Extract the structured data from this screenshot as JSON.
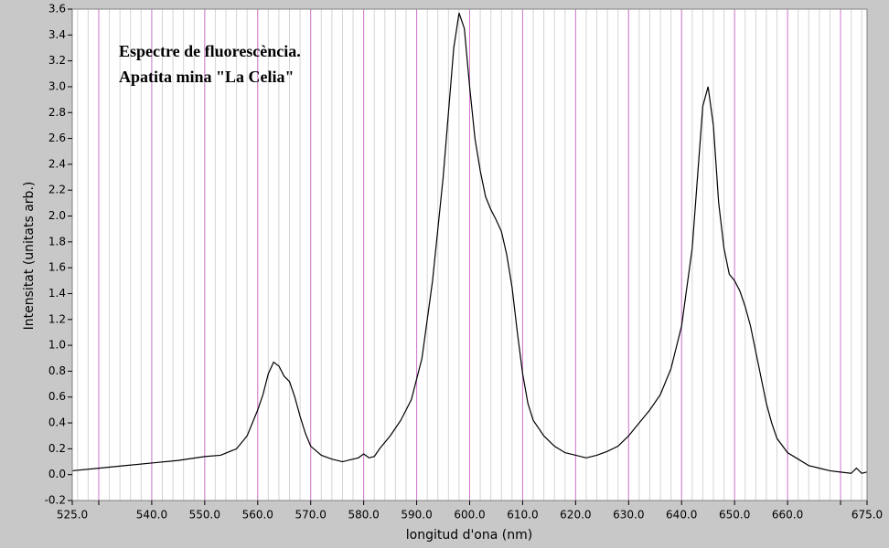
{
  "chart_data": {
    "type": "line",
    "annotation": [
      "Espectre de fluorescència.",
      "Apatita mina \"La Celia\""
    ],
    "xlabel": "longitud d'ona (nm)",
    "ylabel": "Intensitat (unitats arb.)",
    "xlim": [
      525,
      675
    ],
    "ylim": [
      -0.2,
      3.6
    ],
    "xticks": [
      {
        "value": 525,
        "label": "525.0"
      },
      {
        "value": 530,
        "label": null
      },
      {
        "value": 540,
        "label": "540.0"
      },
      {
        "value": 550,
        "label": "550.0"
      },
      {
        "value": 560,
        "label": "560.0"
      },
      {
        "value": 570,
        "label": "570.0"
      },
      {
        "value": 580,
        "label": "580.0"
      },
      {
        "value": 590,
        "label": "590.0"
      },
      {
        "value": 600,
        "label": "600.0"
      },
      {
        "value": 610,
        "label": "610.0"
      },
      {
        "value": 620,
        "label": "620.0"
      },
      {
        "value": 630,
        "label": "630.0"
      },
      {
        "value": 640,
        "label": "640.0"
      },
      {
        "value": 650,
        "label": "650.0"
      },
      {
        "value": 660,
        "label": "660.0"
      },
      {
        "value": 670,
        "label": null
      },
      {
        "value": 675,
        "label": "675.0"
      }
    ],
    "yticks": [
      -0.2,
      {
        "value": 0,
        "label": "0.0"
      },
      0.2,
      0.4,
      0.6,
      0.8,
      {
        "value": 1,
        "label": "1.0"
      },
      1.2,
      1.4,
      1.6,
      1.8,
      {
        "value": 2,
        "label": "2.0"
      },
      2.2,
      2.4,
      2.6,
      2.8,
      {
        "value": 3,
        "label": "3.0"
      },
      3.2,
      3.4,
      3.6
    ],
    "x_minor_step": 2,
    "grid_color": "#d07ad0",
    "minor_grid_color": "#d4d4d4",
    "series": [
      {
        "color": "#000000",
        "x": [
          525,
          530,
          535,
          540,
          545,
          550,
          553,
          556,
          558,
          560,
          561,
          562,
          563,
          564,
          565,
          566,
          567,
          568,
          569,
          570,
          572,
          574,
          576,
          578,
          579,
          580,
          581,
          582,
          583,
          585,
          587,
          589,
          591,
          593,
          595,
          596,
          597,
          598,
          599,
          600,
          601,
          602,
          603,
          604,
          605,
          606,
          607,
          608,
          609,
          610,
          611,
          612,
          614,
          616,
          618,
          620,
          622,
          624,
          626,
          628,
          630,
          632,
          634,
          636,
          638,
          640,
          642,
          643,
          644,
          645,
          646,
          647,
          648,
          649,
          650,
          651,
          652,
          653,
          654,
          655,
          656,
          657,
          658,
          660,
          662,
          664,
          666,
          668,
          670,
          672,
          673,
          674,
          675
        ],
        "values": [
          0.03,
          0.05,
          0.07,
          0.09,
          0.11,
          0.14,
          0.15,
          0.2,
          0.3,
          0.5,
          0.62,
          0.78,
          0.87,
          0.84,
          0.76,
          0.72,
          0.6,
          0.45,
          0.32,
          0.22,
          0.15,
          0.12,
          0.1,
          0.12,
          0.13,
          0.16,
          0.13,
          0.14,
          0.2,
          0.3,
          0.42,
          0.58,
          0.9,
          1.5,
          2.3,
          2.8,
          3.3,
          3.57,
          3.45,
          3.0,
          2.6,
          2.35,
          2.15,
          2.05,
          1.97,
          1.88,
          1.7,
          1.45,
          1.1,
          0.78,
          0.55,
          0.42,
          0.3,
          0.22,
          0.17,
          0.15,
          0.13,
          0.15,
          0.18,
          0.22,
          0.3,
          0.4,
          0.5,
          0.62,
          0.82,
          1.15,
          1.75,
          2.3,
          2.85,
          3.0,
          2.7,
          2.1,
          1.75,
          1.55,
          1.5,
          1.42,
          1.3,
          1.15,
          0.95,
          0.75,
          0.55,
          0.4,
          0.28,
          0.17,
          0.12,
          0.07,
          0.05,
          0.03,
          0.02,
          0.01,
          0.05,
          0.01,
          0.02
        ]
      }
    ]
  }
}
